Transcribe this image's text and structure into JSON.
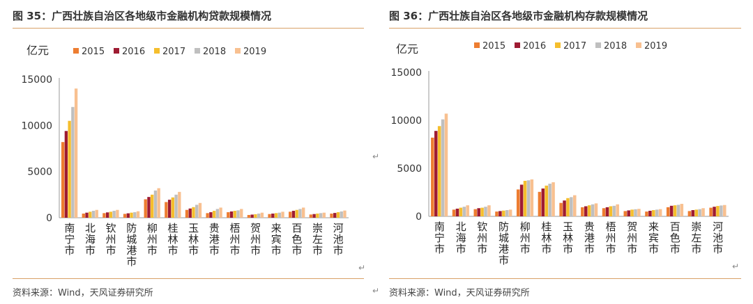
{
  "panels": [
    {
      "title": "图 35：广西壮族自治区各地级市金融机构贷款规模情况",
      "source": "资料来源：Wind，天风证券研究所"
    },
    {
      "title": "图 36：广西壮族自治区各地级市金融机构存款规模情况",
      "source": "资料来源：Wind，天风证券研究所"
    }
  ],
  "marks": {
    "return": "↵"
  },
  "chart_data": [
    {
      "type": "bar",
      "ylabel": "亿元",
      "ylim": [
        0,
        15000
      ],
      "yticks": [
        0,
        5000,
        10000,
        15000
      ],
      "categories": [
        "南宁市",
        "北海市",
        "钦州市",
        "防城港市",
        "柳州市",
        "桂林市",
        "玉林市",
        "贵港市",
        "梧州市",
        "贺州市",
        "来宾市",
        "百色市",
        "崇左市",
        "河池市"
      ],
      "legend_position": "top",
      "series": [
        {
          "name": "2015",
          "color": "#ed7d31",
          "values": [
            8200,
            450,
            500,
            420,
            2000,
            1700,
            850,
            500,
            600,
            300,
            400,
            650,
            350,
            450
          ]
        },
        {
          "name": "2016",
          "color": "#9e1b32",
          "values": [
            9400,
            550,
            580,
            480,
            2250,
            1950,
            1000,
            600,
            680,
            340,
            450,
            750,
            400,
            520
          ]
        },
        {
          "name": "2017",
          "color": "#f5be2d",
          "values": [
            10500,
            650,
            650,
            550,
            2500,
            2200,
            1150,
            750,
            750,
            380,
            500,
            850,
            450,
            600
          ]
        },
        {
          "name": "2018",
          "color": "#bfbfbf",
          "values": [
            12000,
            750,
            750,
            600,
            2950,
            2500,
            1400,
            950,
            800,
            450,
            550,
            950,
            500,
            680
          ]
        },
        {
          "name": "2019",
          "color": "#f8c090",
          "values": [
            14000,
            850,
            850,
            700,
            3200,
            2800,
            1600,
            1100,
            950,
            550,
            650,
            1100,
            550,
            780
          ]
        }
      ]
    },
    {
      "type": "bar",
      "ylabel": "亿元",
      "ylim": [
        0,
        15000
      ],
      "yticks": [
        0,
        5000,
        10000,
        15000
      ],
      "categories": [
        "南宁市",
        "北海市",
        "钦州市",
        "防城港市",
        "柳州市",
        "桂林市",
        "玉林市",
        "贵港市",
        "梧州市",
        "贺州市",
        "来宾市",
        "百色市",
        "崇左市",
        "河池市"
      ],
      "legend_position": "top",
      "series": [
        {
          "name": "2015",
          "color": "#ed7d31",
          "values": [
            8200,
            700,
            750,
            500,
            2800,
            2550,
            1400,
            950,
            850,
            550,
            500,
            950,
            550,
            900
          ]
        },
        {
          "name": "2016",
          "color": "#9e1b32",
          "values": [
            8900,
            800,
            850,
            550,
            3300,
            2900,
            1650,
            1050,
            950,
            620,
            580,
            1100,
            650,
            1000
          ]
        },
        {
          "name": "2017",
          "color": "#f5be2d",
          "values": [
            9400,
            900,
            900,
            600,
            3700,
            3200,
            1900,
            1150,
            1050,
            700,
            650,
            1150,
            700,
            1080
          ]
        },
        {
          "name": "2018",
          "color": "#bfbfbf",
          "values": [
            10100,
            1000,
            1000,
            650,
            3750,
            3400,
            2000,
            1250,
            1100,
            740,
            700,
            1200,
            750,
            1130
          ]
        },
        {
          "name": "2019",
          "color": "#f8c090",
          "values": [
            10700,
            1150,
            1150,
            700,
            3850,
            3550,
            2200,
            1350,
            1250,
            780,
            750,
            1300,
            850,
            1180
          ]
        }
      ]
    }
  ]
}
